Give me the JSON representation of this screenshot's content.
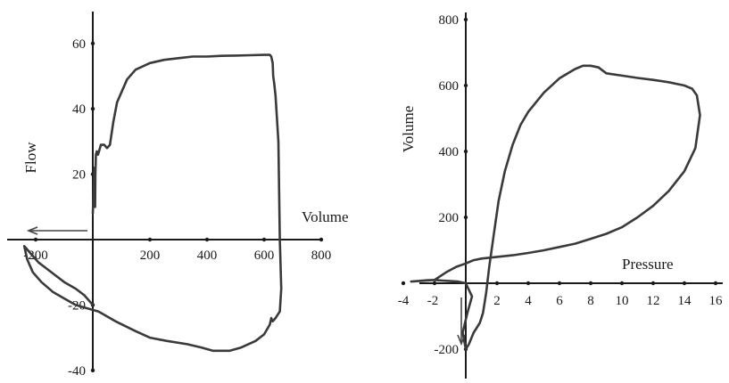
{
  "chart_data": [
    {
      "type": "line",
      "xlabel": "Volume",
      "ylabel": "Flow",
      "xlim": [
        -250,
        850
      ],
      "ylim": [
        -45,
        70
      ],
      "x_ticks": [
        -200,
        200,
        400,
        600,
        800
      ],
      "y_ticks": [
        60,
        40,
        20,
        -20,
        -40
      ],
      "series": [
        {
          "x": [
            0,
            3,
            6,
            8,
            9,
            11,
            14,
            18,
            22,
            28,
            40,
            50,
            60,
            72,
            85,
            100,
            120,
            150,
            200,
            250,
            300,
            350,
            400,
            450,
            500,
            550,
            600,
            620,
            625,
            630,
            632,
            635,
            640,
            650,
            655,
            660,
            655,
            640,
            630,
            625,
            620,
            600,
            570,
            520,
            480,
            440,
            420,
            380,
            330,
            260,
            200,
            150,
            80,
            20,
            -20,
            -60,
            -100,
            -140,
            -180,
            -210,
            -230,
            -240,
            -230,
            -210,
            -190,
            -160,
            -130,
            -100,
            -60,
            -30,
            -10,
            0
          ],
          "y": [
            8,
            15,
            22,
            10,
            20,
            26,
            27,
            26,
            27,
            29,
            29,
            28,
            29,
            36,
            42,
            45,
            49,
            52,
            54,
            55,
            55.5,
            56,
            56,
            56.2,
            56.3,
            56.4,
            56.5,
            56.5,
            56,
            54,
            50,
            48,
            44,
            30,
            0,
            -15,
            -22,
            -24,
            -25,
            -24,
            -26,
            -29,
            -31,
            -33,
            -34,
            -34,
            -34,
            -33,
            -32,
            -31,
            -30,
            -28,
            -25,
            -22,
            -21,
            -20,
            -18,
            -16,
            -13,
            -10,
            -6,
            -2,
            -3,
            -5,
            -7,
            -9,
            -11,
            -13,
            -15,
            -17,
            -19,
            -20
          ]
        }
      ]
    },
    {
      "type": "line",
      "xlabel": "Pressure",
      "ylabel": "Volume",
      "xlim": [
        -4,
        16.5
      ],
      "ylim": [
        -250,
        820
      ],
      "x_ticks": [
        -4,
        -2,
        2,
        4,
        6,
        8,
        10,
        12,
        14,
        16
      ],
      "y_ticks": [
        800,
        600,
        400,
        200,
        -200
      ],
      "series": [
        {
          "x": [
            -3.5,
            -2,
            -1.2,
            -0.6,
            0,
            0.5,
            1,
            2,
            3,
            4,
            5,
            6,
            7,
            8,
            9,
            10,
            11,
            12,
            13,
            14,
            14.7,
            15,
            14.8,
            14.5,
            14,
            13,
            12,
            11,
            10,
            9,
            8.5,
            8,
            7.5,
            7,
            6,
            5,
            4,
            3.5,
            3,
            2.5,
            2.1,
            1.8,
            1.5,
            1.3,
            1.1,
            0.9,
            0.5,
            0.2,
            0,
            -0.2,
            0.1,
            0.4,
            0,
            -0.5,
            -1.5,
            -2,
            -2.5,
            -3
          ],
          "y": [
            5,
            10,
            35,
            50,
            60,
            70,
            75,
            80,
            85,
            92,
            100,
            110,
            120,
            135,
            150,
            170,
            200,
            235,
            280,
            340,
            410,
            510,
            570,
            590,
            600,
            610,
            617,
            623,
            630,
            637,
            655,
            660,
            660,
            650,
            622,
            578,
            520,
            480,
            420,
            340,
            250,
            150,
            50,
            -30,
            -90,
            -120,
            -150,
            -185,
            -200,
            -150,
            -90,
            -40,
            0,
            5,
            8,
            10,
            9,
            7
          ]
        }
      ]
    }
  ]
}
